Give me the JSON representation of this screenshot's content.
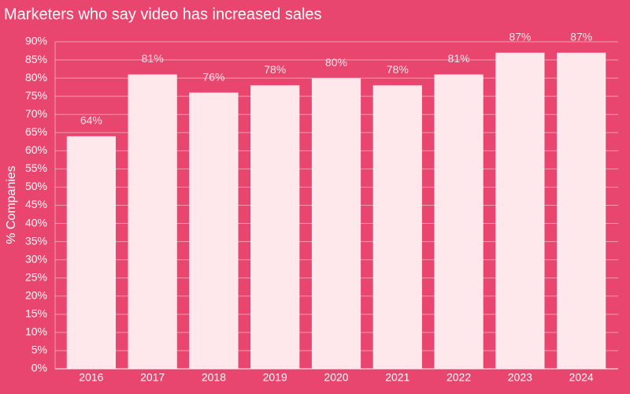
{
  "chart_data": {
    "type": "bar",
    "title": "Marketers who say video has increased sales",
    "y_label": "% Companies",
    "categories": [
      "2016",
      "2017",
      "2018",
      "2019",
      "2020",
      "2021",
      "2022",
      "2023",
      "2024"
    ],
    "values": [
      64,
      81,
      76,
      78,
      80,
      78,
      81,
      87,
      87
    ],
    "value_labels": [
      "64%",
      "81%",
      "76%",
      "78%",
      "80%",
      "78%",
      "81%",
      "87%",
      "87%"
    ],
    "color": "#ffe8ec",
    "background": "#e8466f",
    "ylim": [
      0,
      90
    ],
    "yticks": [
      {
        "value": 0,
        "label": "0%"
      },
      {
        "value": 5,
        "label": "5%"
      },
      {
        "value": 10,
        "label": "10%"
      },
      {
        "value": 15,
        "label": "15%"
      },
      {
        "value": 20,
        "label": "20%"
      },
      {
        "value": 25,
        "label": "25%"
      },
      {
        "value": 30,
        "label": "30%"
      },
      {
        "value": 35,
        "label": "35%"
      },
      {
        "value": 40,
        "label": "40%"
      },
      {
        "value": 45,
        "label": "45%"
      },
      {
        "value": 50,
        "label": "50%"
      },
      {
        "value": 55,
        "label": "55%"
      },
      {
        "value": 60,
        "label": "60%"
      },
      {
        "value": 65,
        "label": "65%"
      },
      {
        "value": 70,
        "label": "70%"
      },
      {
        "value": 75,
        "label": "75%"
      },
      {
        "value": 80,
        "label": "80%"
      },
      {
        "value": 85,
        "label": "85%"
      },
      {
        "value": 90,
        "label": "90%"
      }
    ],
    "grid": true
  }
}
